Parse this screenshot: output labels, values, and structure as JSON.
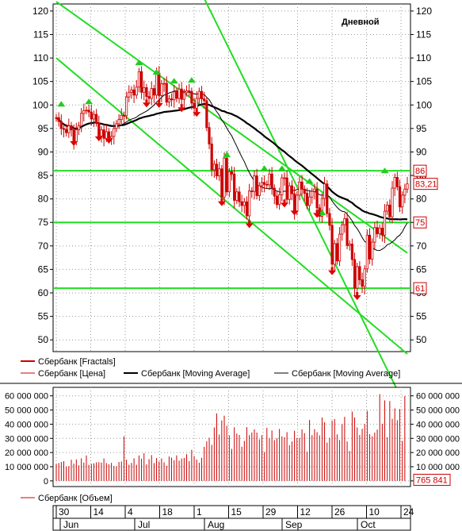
{
  "chart_data": [
    {
      "type": "candlestick",
      "title": "Дневной",
      "y_axis": {
        "ylim": [
          47.5,
          121.5
        ],
        "ticks": [
          50,
          55,
          60,
          65,
          70,
          75,
          80,
          85,
          90,
          95,
          100,
          105,
          110,
          115,
          120
        ]
      },
      "legend": [
        {
          "label": "Сбербанк [Fractals]",
          "color": "#cc0000"
        },
        {
          "label": "Сбербанк [Цена]",
          "color": "#cc0000"
        },
        {
          "label": "Сбербанк [Moving Average]",
          "color": "#000000"
        },
        {
          "label": "Сбербанк [Moving Average]",
          "color": "#000000"
        }
      ],
      "price_markers": [
        {
          "label": "86",
          "value": 86
        },
        {
          "label": "83,21",
          "value": 83.21
        },
        {
          "label": "75",
          "value": 75
        },
        {
          "label": "61",
          "value": 61
        }
      ],
      "horizontal_levels": [
        86,
        75,
        61
      ],
      "trend_lines": [
        {
          "x0": 43,
          "y0": 140.0,
          "x1": 140,
          "y1": 35.0
        },
        {
          "x0": 0,
          "y0": 110.0,
          "x1": 140,
          "y1": 47.0
        },
        {
          "x0": 0,
          "y0": 122.0,
          "x1": 140,
          "y1": 68.5
        }
      ],
      "closes": [
        97.3,
        96.5,
        95.0,
        94.8,
        94.1,
        95.6,
        94.7,
        92.2,
        94.7,
        95.6,
        98.2,
        98.8,
        98.9,
        98.5,
        97.0,
        98.0,
        96.2,
        93.4,
        94.7,
        92.9,
        94.3,
        92.9,
        93.3,
        95.0,
        96.0,
        96.9,
        97.8,
        97.7,
        101.7,
        102.7,
        103.2,
        102.1,
        103.8,
        107.1,
        102.7,
        103.7,
        101.8,
        101.4,
        103.5,
        102.1,
        106.8,
        102.0,
        104.5,
        104.6,
        100.6,
        101.3,
        101.1,
        102.8,
        101.4,
        103.4,
        101.2,
        102.6,
        103.0,
        102.9,
        100.4,
        99.3,
        101.4,
        102.9,
        101.3,
        100.9,
        95.2,
        91.7,
        86.2,
        87.4,
        84.9,
        86.4,
        80.4,
        88.7,
        81.5,
        85.8,
        85.3,
        79.7,
        81.5,
        79.4,
        78.6,
        79.4,
        76.4,
        81.7,
        81.6,
        84.9,
        80.7,
        82.8,
        83.5,
        83.1,
        83.0,
        85.3,
        82.3,
        80.6,
        78.8,
        80.9,
        84.5,
        84.5,
        79.9,
        82.8,
        81.1,
        77.3,
        80.8,
        83.6,
        82.1,
        81.2,
        78.6,
        80.4,
        81.6,
        82.1,
        78.1,
        76.3,
        80.1,
        83.2,
        76.9,
        74.4,
        66.1,
        70.5,
        66.8,
        72.5,
        74.5,
        75.8,
        70.1,
        70.4,
        67.1,
        61.0,
        65.6,
        62.8,
        61.4,
        65.1,
        72.3,
        67.2,
        70.8,
        73.9,
        72.6,
        73.8,
        72.3,
        77.4,
        78.7,
        76.2,
        82.3,
        84.6,
        82.6,
        78.3,
        80.8,
        82.1,
        83.2
      ],
      "fractals_up": [
        {
          "i": 2,
          "value": 100.0
        },
        {
          "i": 13,
          "value": 100.5
        },
        {
          "i": 33,
          "value": 108.8
        },
        {
          "i": 40,
          "value": 106.8
        },
        {
          "i": 47,
          "value": 104.9
        },
        {
          "i": 54,
          "value": 105.1
        },
        {
          "i": 68,
          "value": 89.2
        },
        {
          "i": 83,
          "value": 86.3
        },
        {
          "i": 90,
          "value": 86.3
        },
        {
          "i": 101,
          "value": 83.6
        },
        {
          "i": 106,
          "value": 76.9
        },
        {
          "i": 131,
          "value": 85.8
        }
      ],
      "fractals_down": [
        {
          "i": 7,
          "value": 92.3
        },
        {
          "i": 17,
          "value": 93.3
        },
        {
          "i": 21,
          "value": 92.8
        },
        {
          "i": 36,
          "value": 100.5
        },
        {
          "i": 41,
          "value": 100.4
        },
        {
          "i": 50,
          "value": 99.5
        },
        {
          "i": 56,
          "value": 98.5
        },
        {
          "i": 66,
          "value": 79.5
        },
        {
          "i": 77,
          "value": 74.8
        },
        {
          "i": 91,
          "value": 79.2
        },
        {
          "i": 95,
          "value": 77.5
        },
        {
          "i": 104,
          "value": 77.0
        },
        {
          "i": 110,
          "value": 64.8
        },
        {
          "i": 120,
          "value": 59.5
        }
      ]
    },
    {
      "type": "bar",
      "series_name": "Сбербанк [Объем]",
      "y_axis": {
        "ylim": [
          -4000000,
          66000000
        ],
        "ticks": [
          0,
          10000000,
          20000000,
          30000000,
          40000000,
          50000000,
          60000000
        ],
        "tick_labels": [
          "0",
          "10 000 000",
          "20 000 000",
          "30 000 000",
          "40 000 000",
          "50 000 000",
          "60 000 000"
        ]
      },
      "last_value_label": "765 841",
      "last_value": 765841,
      "volumes": [
        12000000,
        12600000,
        13300000,
        13900000,
        10200000,
        10400000,
        14900000,
        12100000,
        15100000,
        11000000,
        15900000,
        12900000,
        17900000,
        11300000,
        12000000,
        12400000,
        13100000,
        13200000,
        12900000,
        15800000,
        12600000,
        11700000,
        12700000,
        10600000,
        10300000,
        13300000,
        13700000,
        31500000,
        14900000,
        11400000,
        12700000,
        15900000,
        11400000,
        17900000,
        15700000,
        19500000,
        11600000,
        15300000,
        18200000,
        12600000,
        16100000,
        13600000,
        15800000,
        13100000,
        10600000,
        17200000,
        16400000,
        14600000,
        18000000,
        14300000,
        15800000,
        16200000,
        18800000,
        13900000,
        21900000,
        17600000,
        15100000,
        12800000,
        16300000,
        24000000,
        27900000,
        30400000,
        25400000,
        37700000,
        47600000,
        32700000,
        42600000,
        46000000,
        38900000,
        32100000,
        22600000,
        37800000,
        33400000,
        32400000,
        24100000,
        28200000,
        37900000,
        32300000,
        34100000,
        36300000,
        34100000,
        29300000,
        32200000,
        20400000,
        37400000,
        30100000,
        35600000,
        28700000,
        30100000,
        36700000,
        31400000,
        30700000,
        34400000,
        25200000,
        27800000,
        35400000,
        30300000,
        30300000,
        36300000,
        33700000,
        20700000,
        43000000,
        32300000,
        36500000,
        34400000,
        32100000,
        44700000,
        41400000,
        27000000,
        30400000,
        42500000,
        43600000,
        32800000,
        28800000,
        40100000,
        45200000,
        27800000,
        21100000,
        48900000,
        44800000,
        37700000,
        32400000,
        36800000,
        40100000,
        49300000,
        33000000,
        31500000,
        34100000,
        36200000,
        61200000,
        40300000,
        56800000,
        30800000,
        56300000,
        43800000,
        51200000,
        42800000,
        50600000,
        28200000,
        59800000
      ],
      "x_axis": {
        "day_ticks": [
          "30",
          "14",
          "4",
          "18",
          "1",
          "15",
          "29",
          "12",
          "26",
          "10",
          "24"
        ],
        "months": [
          "Jun",
          "Jul",
          "Aug",
          "Sep",
          "Oct"
        ]
      }
    }
  ]
}
